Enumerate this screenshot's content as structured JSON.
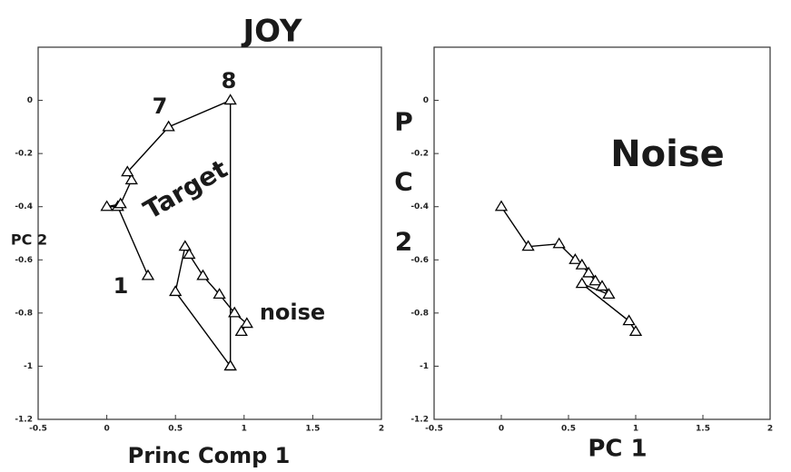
{
  "chart_data": [
    {
      "type": "line",
      "title": "JOY",
      "xlabel": "Princ Comp 1",
      "ylabel": "PC 2",
      "xlim": [
        -0.5,
        2.0
      ],
      "xticks": [
        -0.5,
        0.0,
        0.5,
        1.0,
        1.5,
        2.0
      ],
      "ylim": [
        -1.2,
        0.2
      ],
      "yticks": [
        -1.2,
        -1.0,
        -0.8,
        -0.6,
        -0.4,
        -0.2,
        0.0
      ],
      "annotations": [
        "Target",
        "noise",
        "1",
        "7",
        "8"
      ],
      "series": [
        {
          "color": "#000000",
          "x": [
            0.3,
            0.08,
            0.0,
            0.1,
            0.18,
            0.15,
            0.45,
            0.9,
            0.9
          ],
          "values": [
            -0.66,
            -0.4,
            -0.4,
            -0.39,
            -0.3,
            -0.27,
            -0.1,
            0.0,
            -1.0
          ]
        },
        {
          "color": "#000000",
          "x": [
            0.9,
            0.5,
            0.57,
            0.6,
            0.7,
            0.82,
            0.93,
            1.02,
            0.98
          ],
          "values": [
            -1.0,
            -0.72,
            -0.55,
            -0.58,
            -0.66,
            -0.73,
            -0.8,
            -0.84,
            -0.87
          ]
        }
      ]
    },
    {
      "type": "line",
      "title": "Noise",
      "xlabel": "PC 1",
      "ylabel": "P C 2",
      "xlim": [
        -0.5,
        2.0
      ],
      "xticks": [
        -0.5,
        0.0,
        0.5,
        1.0,
        1.5,
        2.0
      ],
      "ylim": [
        -1.2,
        0.2
      ],
      "yticks": [
        -1.2,
        -1.0,
        -0.8,
        -0.6,
        -0.4,
        -0.2,
        0.0
      ],
      "series": [
        {
          "color": "#000000",
          "x": [
            0.0,
            0.2,
            0.43,
            0.55,
            0.6,
            0.65,
            0.7,
            0.75,
            0.8,
            0.6,
            0.95,
            1.0
          ],
          "values": [
            -0.4,
            -0.55,
            -0.54,
            -0.6,
            -0.62,
            -0.65,
            -0.68,
            -0.7,
            -0.73,
            -0.69,
            -0.83,
            -0.87
          ]
        }
      ]
    }
  ]
}
